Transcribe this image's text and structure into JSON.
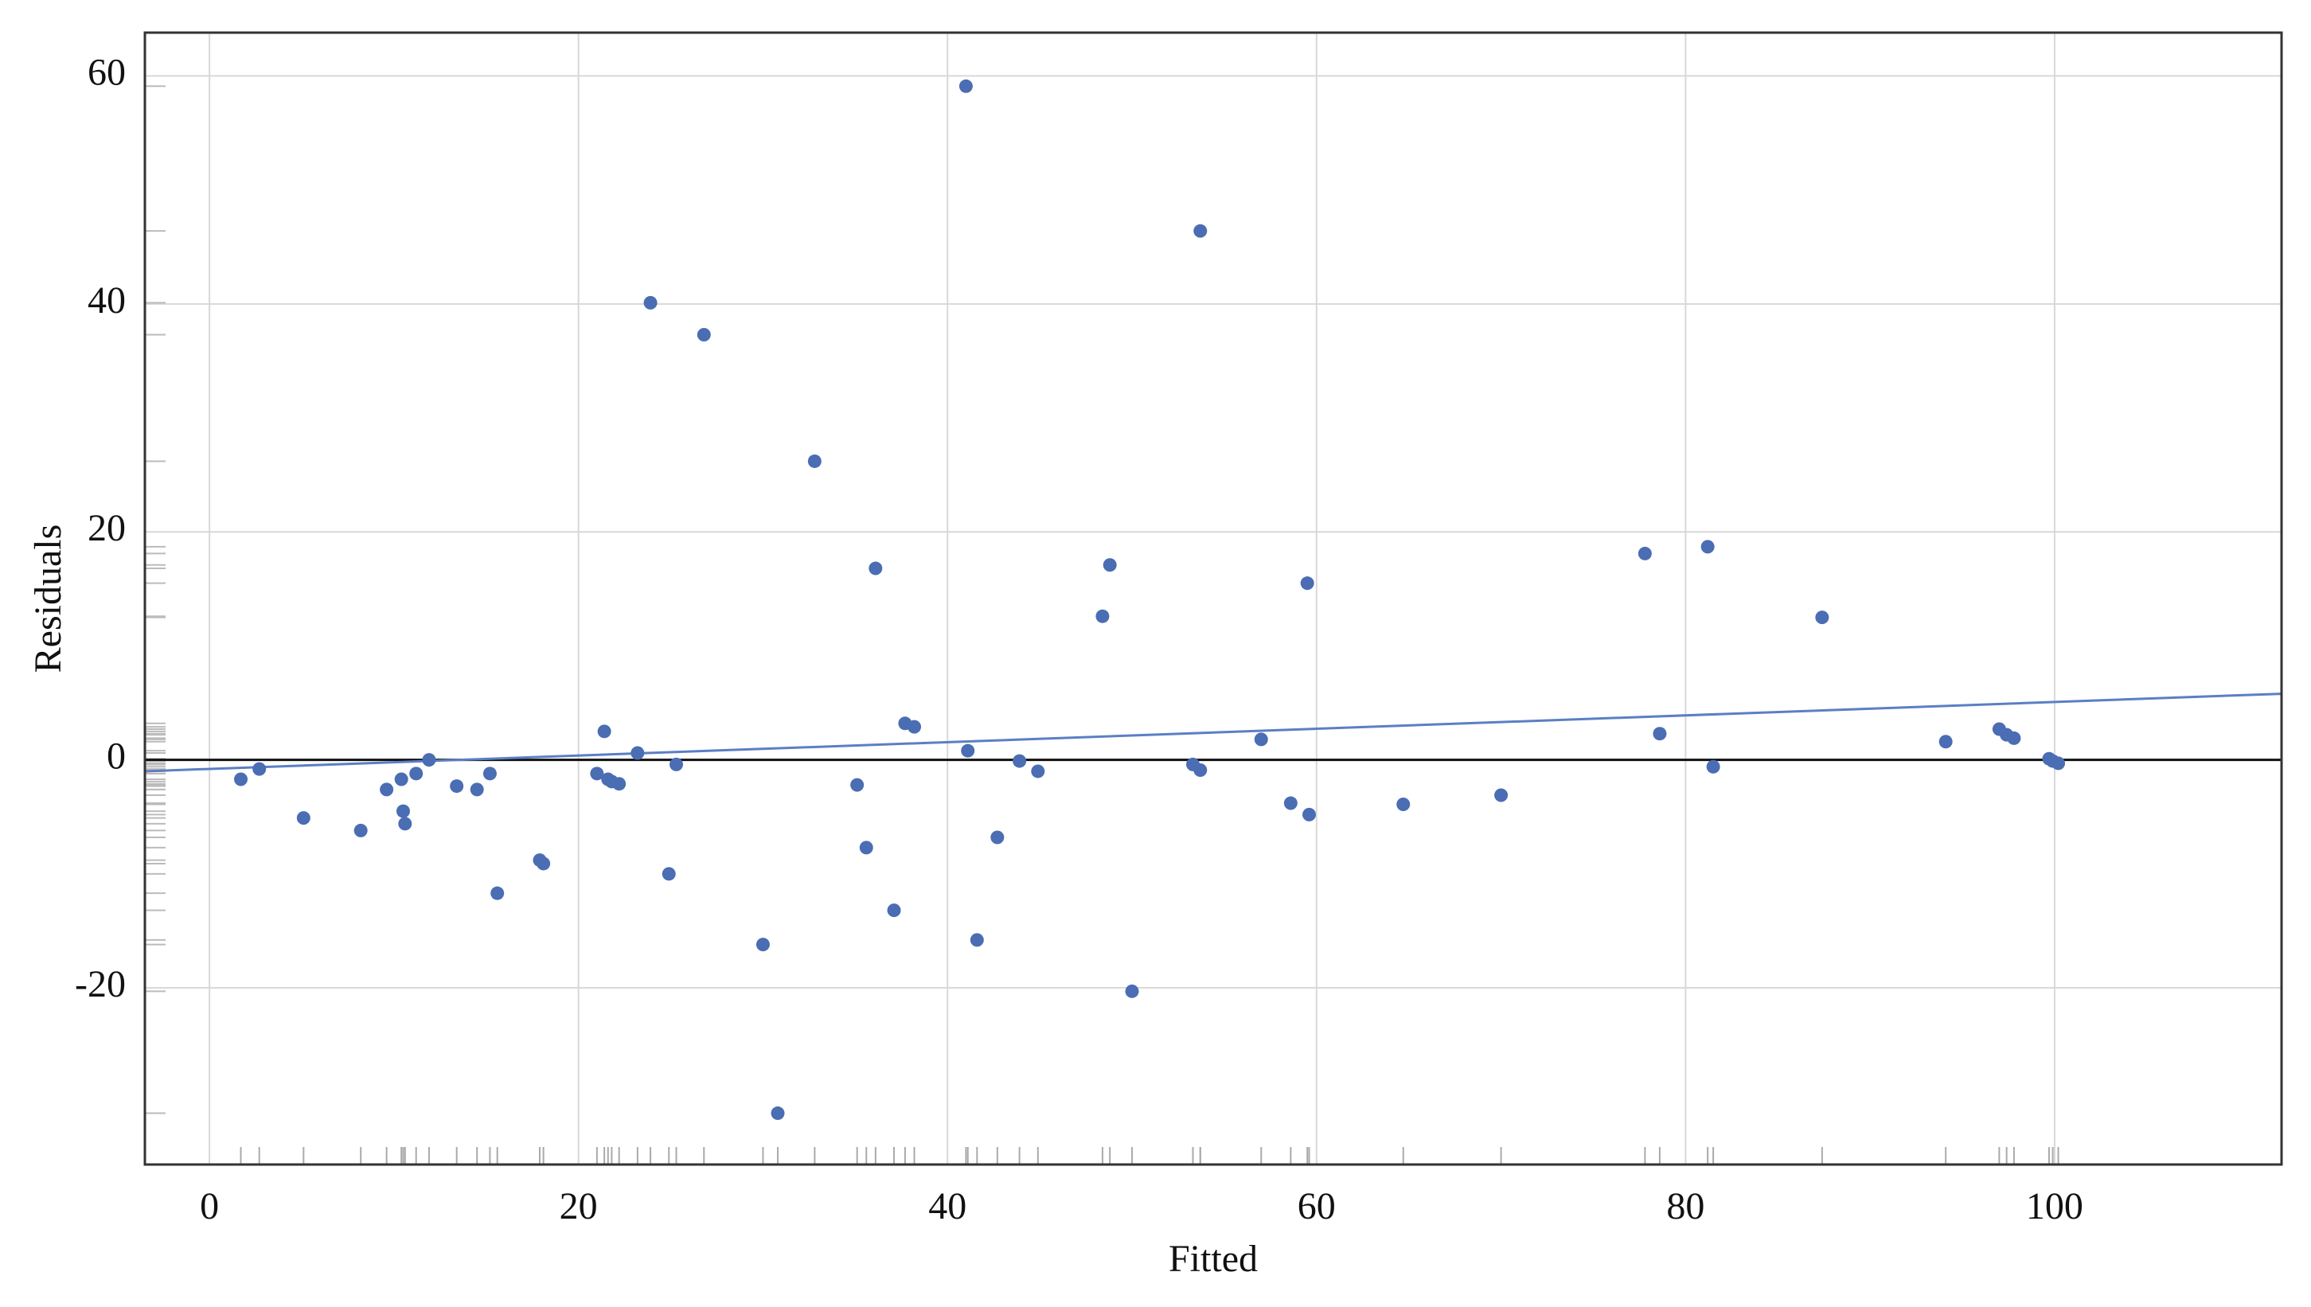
{
  "chart_data": {
    "type": "scatter",
    "xlabel": "Fitted",
    "ylabel": "Residuals",
    "xlim": [
      -3.5,
      112.3
    ],
    "ylim": [
      -35.5,
      63.8
    ],
    "xticks": [
      0,
      20,
      40,
      60,
      80,
      100
    ],
    "yticks": [
      -20,
      0,
      20,
      40,
      60
    ],
    "grid": true,
    "rug": true,
    "reference_line": 0,
    "trend_line": {
      "color": "#5b7fc4",
      "x": [
        -3.5,
        112.3
      ],
      "y": [
        -1.0,
        5.8
      ]
    },
    "series": [
      {
        "color": "#4a6db3",
        "x": [
          1.7,
          2.7,
          5.1,
          8.2,
          9.6,
          10.4,
          10.5,
          10.6,
          11.2,
          11.9,
          13.4,
          14.5,
          15.2,
          15.6,
          17.9,
          18.1,
          21.0,
          21.4,
          21.6,
          21.8,
          22.2,
          23.2,
          23.9,
          24.9,
          25.3,
          26.8,
          30.0,
          30.8,
          32.8,
          35.1,
          35.6,
          36.1,
          37.1,
          37.7,
          38.2,
          41.0,
          41.1,
          41.6,
          42.7,
          43.9,
          44.9,
          48.4,
          48.8,
          50.0,
          53.3,
          53.7,
          53.7,
          57.0,
          58.6,
          59.5,
          59.6,
          64.7,
          70.0,
          77.8,
          78.6,
          81.2,
          81.5,
          87.4,
          94.1,
          97.0,
          97.4,
          97.8,
          99.7,
          99.9,
          100.2
        ],
        "values": [
          -1.7,
          -0.8,
          -5.1,
          -6.2,
          -2.6,
          -1.7,
          -4.5,
          -5.6,
          -1.2,
          0,
          -2.3,
          -2.6,
          -1.2,
          -11.7,
          -8.8,
          -9.1,
          -1.2,
          2.5,
          -1.7,
          -1.9,
          -2.1,
          0.6,
          40.1,
          -10.0,
          -0.4,
          37.3,
          -16.2,
          -31.0,
          26.2,
          -2.2,
          -7.7,
          16.8,
          -13.2,
          3.2,
          2.9,
          59.1,
          0.8,
          -15.8,
          -6.8,
          -0.1,
          -1.0,
          12.6,
          17.1,
          -20.3,
          -0.4,
          -0.9,
          46.4,
          1.8,
          -3.8,
          15.5,
          -4.8,
          -3.9,
          -3.1,
          18.1,
          2.3,
          18.7,
          -0.6,
          12.5,
          1.6,
          2.7,
          2.2,
          1.9,
          0.1,
          -0.1,
          -0.3
        ]
      }
    ]
  }
}
